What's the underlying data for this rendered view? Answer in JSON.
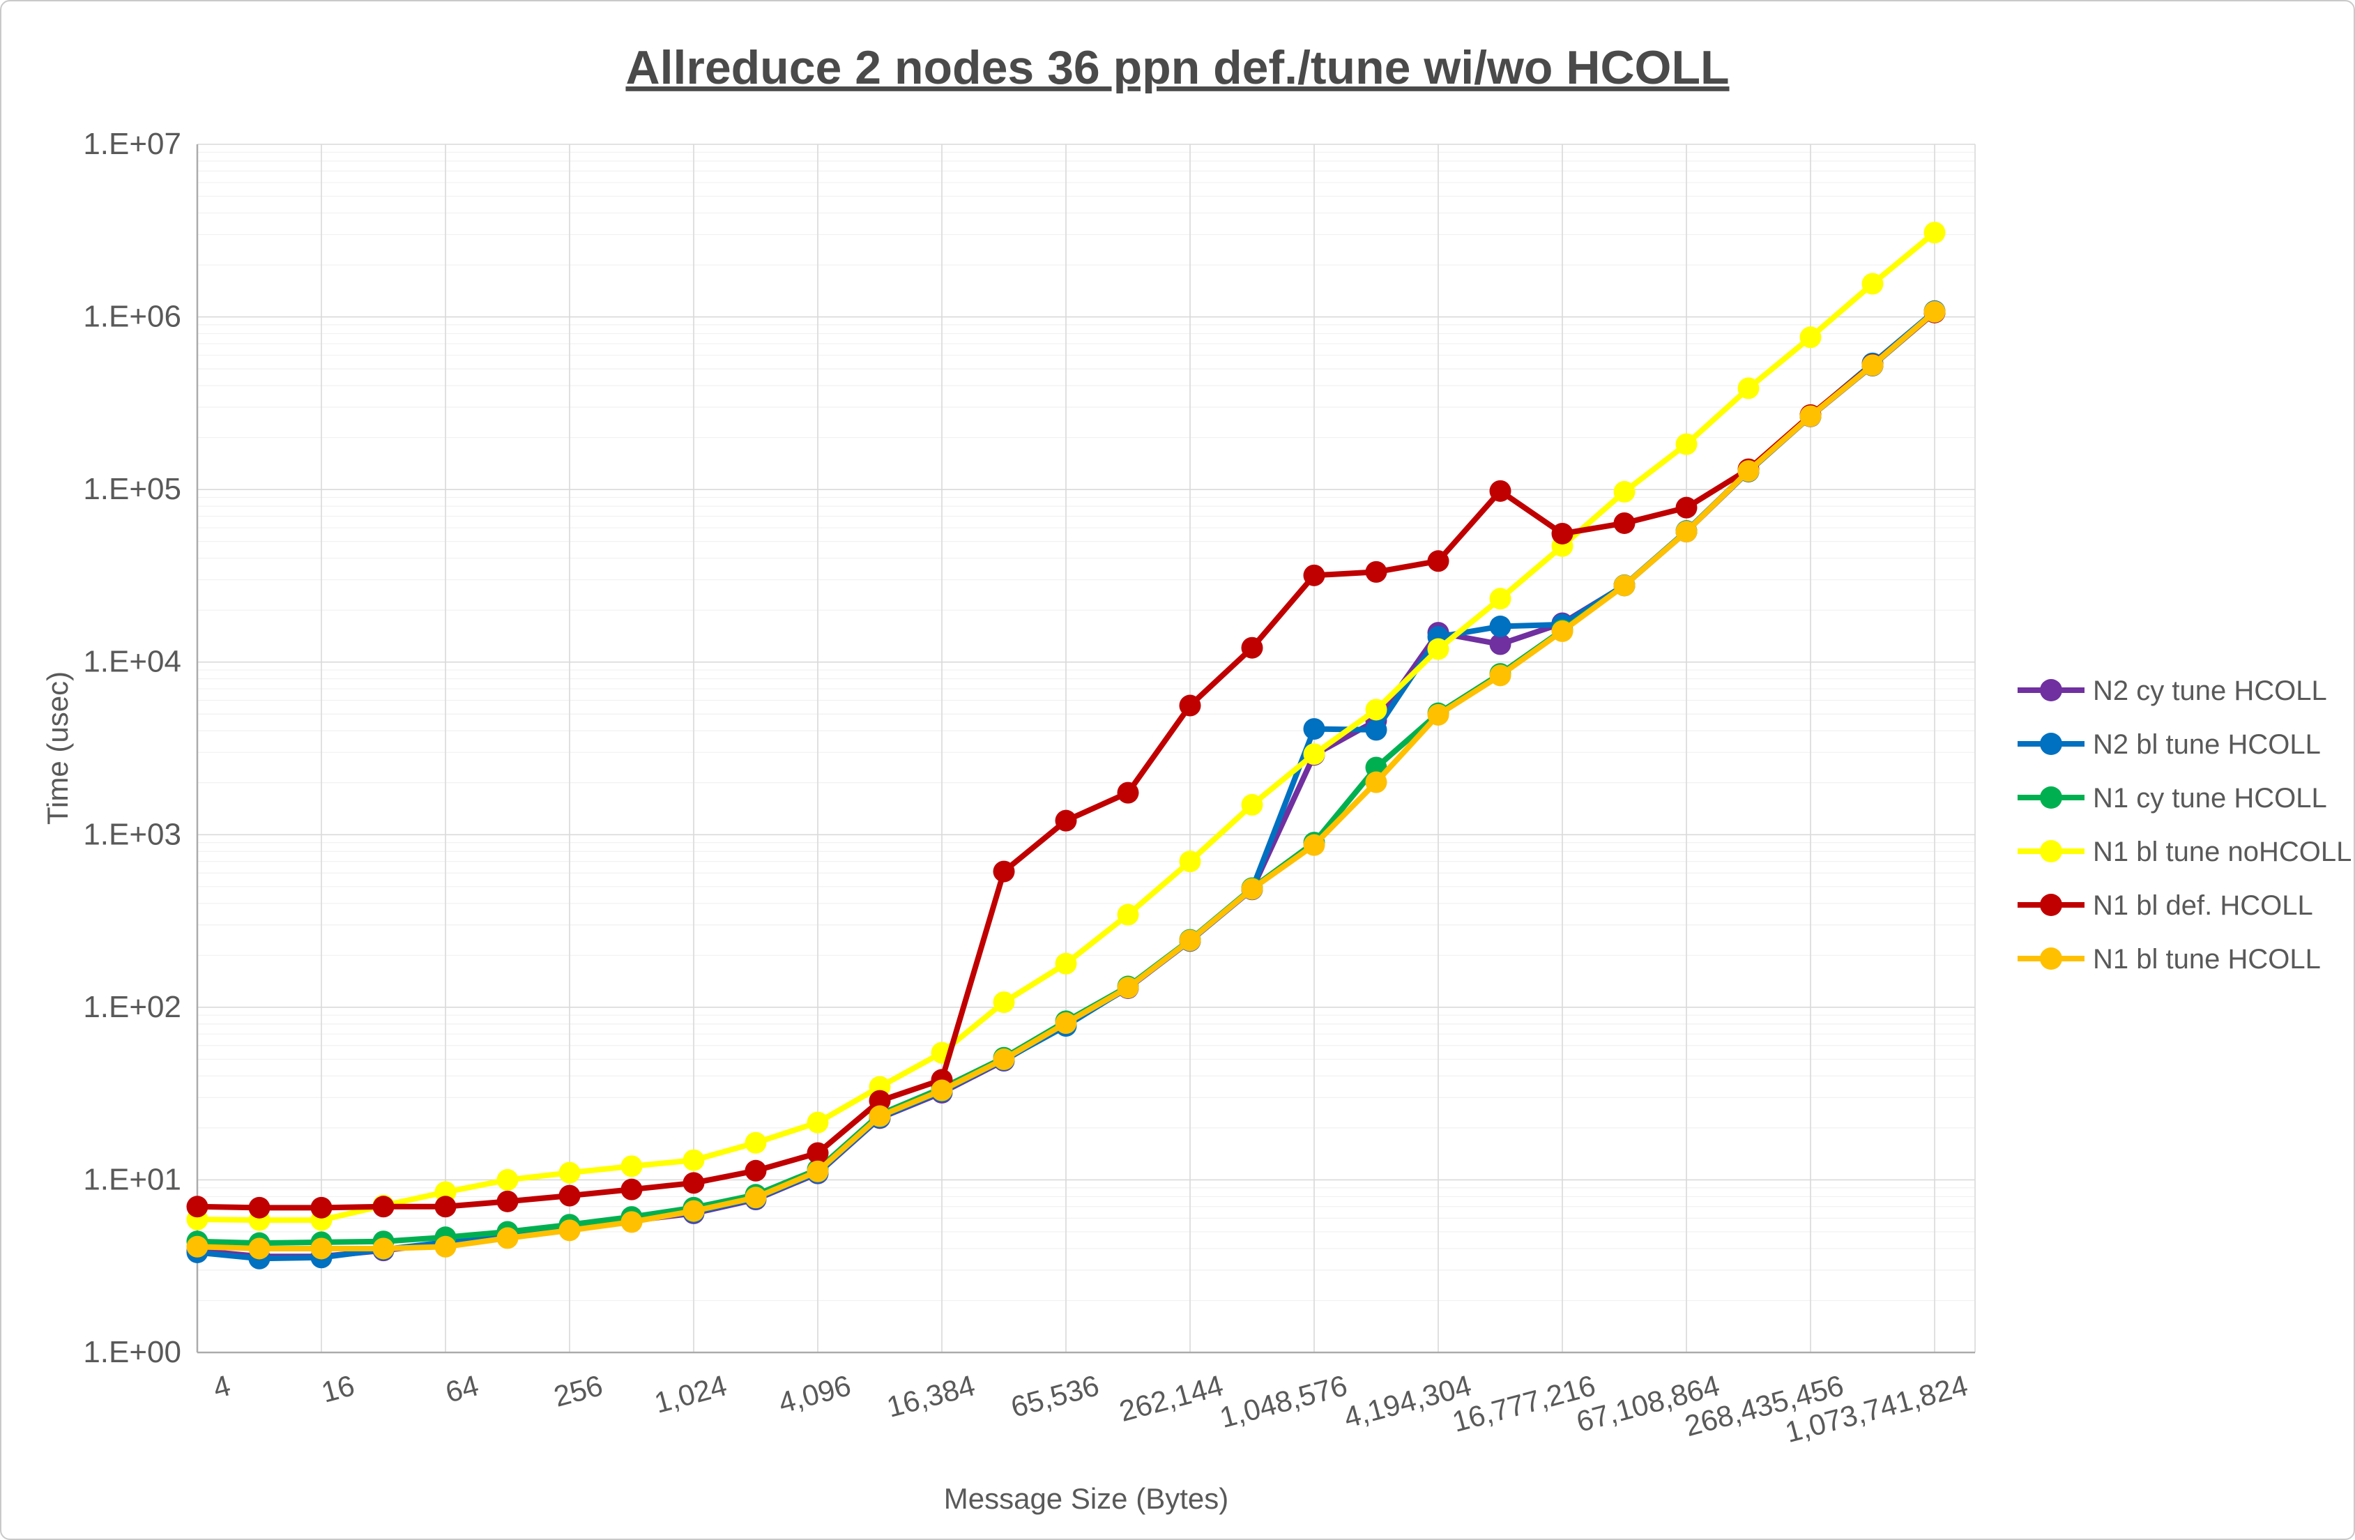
{
  "chart_data": {
    "type": "line",
    "title": "Allreduce 2 nodes 36 ppn def./tune wi/wo HCOLL",
    "xlabel": "Message Size (Bytes)",
    "ylabel": "Time (usec)",
    "x_scale": "log2-categorical",
    "y_scale": "log10",
    "ylim": [
      1,
      10000000
    ],
    "grid": "major-and-minor",
    "legend_position": "right",
    "text_color": "#595959",
    "y_tick_labels": [
      "1.E+00",
      "1.E+01",
      "1.E+02",
      "1.E+03",
      "1.E+04",
      "1.E+05",
      "1.E+06",
      "1.E+07"
    ],
    "x_tick_labels": [
      "4",
      "16",
      "64",
      "256",
      "1,024",
      "4,096",
      "16,384",
      "65,536",
      "262,144",
      "1,048,576",
      "4,194,304",
      "16,777,216",
      "67,108,864",
      "268,435,456",
      "1,073,741,824"
    ],
    "sizes": [
      4,
      8,
      16,
      32,
      64,
      128,
      256,
      512,
      1024,
      2048,
      4096,
      8192,
      16384,
      32768,
      65536,
      131072,
      262144,
      524288,
      1048576,
      2097152,
      4194304,
      8388608,
      16777216,
      33554432,
      67108864,
      134217728,
      268435456,
      536870912,
      1073741824
    ],
    "series": [
      {
        "name": "N2 cy tune HCOLL",
        "color": "#7030A0",
        "values": [
          3.9,
          3.6,
          3.6,
          3.9,
          4.3,
          4.8,
          5.2,
          5.8,
          6.4,
          7.7,
          10.9,
          22.8,
          32,
          49,
          80,
          129,
          242,
          482,
          2900,
          4580,
          14800,
          12700,
          16800,
          27800,
          57000,
          127000,
          265000,
          522000,
          1060000
        ]
      },
      {
        "name": "N2 bl tune HCOLL",
        "color": "#0070C0",
        "values": [
          3.8,
          3.5,
          3.55,
          3.95,
          4.35,
          4.85,
          5.3,
          5.9,
          6.5,
          7.8,
          11,
          23,
          32.5,
          49.5,
          78,
          130,
          243,
          484,
          4100,
          4050,
          14000,
          16100,
          16500,
          27900,
          57500,
          128000,
          268000,
          538000,
          1080000
        ]
      },
      {
        "name": "N1 cy tune HCOLL",
        "color": "#00B050",
        "values": [
          4.4,
          4.3,
          4.35,
          4.4,
          4.65,
          5,
          5.5,
          6.1,
          6.9,
          8.2,
          11.5,
          24,
          34,
          51,
          83,
          132,
          246,
          490,
          900,
          2450,
          5050,
          8550,
          15300,
          27800,
          57200,
          127500,
          266000,
          524000,
          1065000
        ]
      },
      {
        "name": "N1 bl tune noHCOLL",
        "color": "#FFFF00",
        "values": [
          5.9,
          5.85,
          5.85,
          7.1,
          8.5,
          10,
          11,
          12,
          13,
          16.4,
          21.5,
          34.6,
          54.5,
          107,
          179,
          344,
          700,
          1490,
          2930,
          5300,
          11900,
          23300,
          47000,
          97000,
          183000,
          386000,
          762000,
          1556000,
          3080000
        ]
      },
      {
        "name": "N1 bl def. HCOLL",
        "color": "#C00000",
        "values": [
          7,
          6.9,
          6.9,
          7,
          7,
          7.5,
          8.1,
          8.8,
          9.6,
          11.3,
          14.3,
          28.7,
          38,
          612,
          1206,
          1750,
          5600,
          12100,
          31800,
          33300,
          38500,
          98000,
          55500,
          63800,
          78500,
          131000,
          270000,
          528000,
          1062000
        ]
      },
      {
        "name": "N1 bl tune HCOLL",
        "color": "#FFC000",
        "values": [
          4.1,
          4,
          4,
          4,
          4.1,
          4.6,
          5.1,
          5.7,
          6.6,
          7.9,
          11.2,
          23.4,
          33,
          50,
          81,
          130,
          244,
          485,
          871,
          2014,
          4950,
          8370,
          15100,
          27800,
          57000,
          128000,
          266000,
          525000,
          1070000
        ]
      }
    ]
  }
}
